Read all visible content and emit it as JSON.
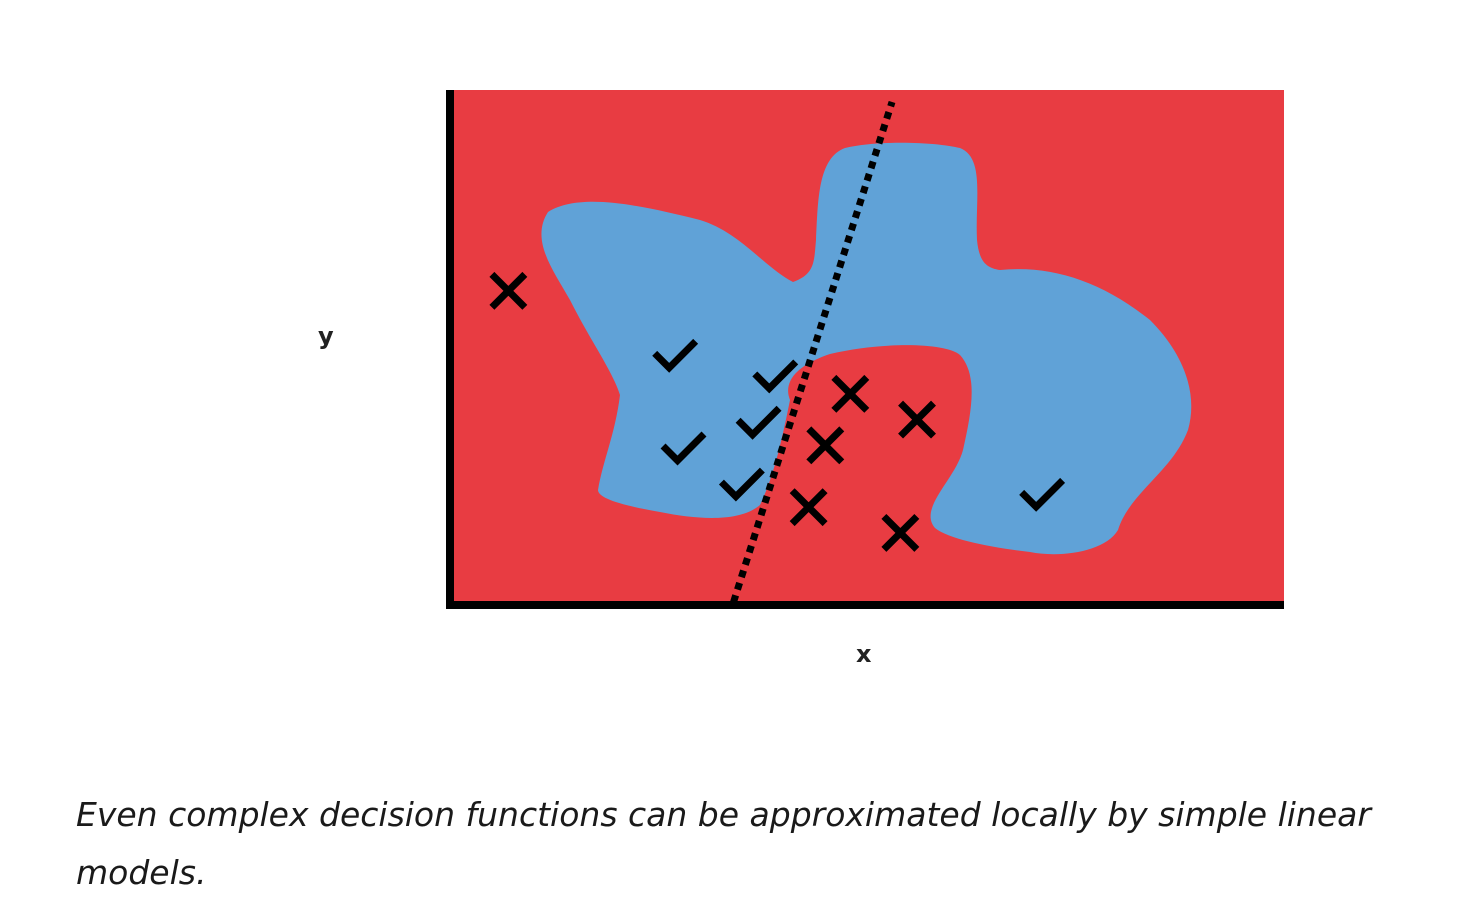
{
  "figure": {
    "axes": {
      "x_label": "x",
      "y_label": "y"
    },
    "colors": {
      "negative_region": "#e83c42",
      "positive_region": "#60a2d7",
      "axis": "#000000",
      "marker": "#000000",
      "boundary_line": "#000000"
    },
    "markers": [
      {
        "type": "cross",
        "x": 0.07,
        "y": 0.61
      },
      {
        "type": "check",
        "x": 0.27,
        "y": 0.48
      },
      {
        "type": "check",
        "x": 0.39,
        "y": 0.44
      },
      {
        "type": "check",
        "x": 0.37,
        "y": 0.35
      },
      {
        "type": "check",
        "x": 0.28,
        "y": 0.3
      },
      {
        "type": "check",
        "x": 0.35,
        "y": 0.23
      },
      {
        "type": "cross",
        "x": 0.48,
        "y": 0.41
      },
      {
        "type": "cross",
        "x": 0.56,
        "y": 0.36
      },
      {
        "type": "cross",
        "x": 0.45,
        "y": 0.31
      },
      {
        "type": "cross",
        "x": 0.43,
        "y": 0.19
      },
      {
        "type": "cross",
        "x": 0.54,
        "y": 0.14
      },
      {
        "type": "check",
        "x": 0.71,
        "y": 0.21
      }
    ],
    "boundary_line": {
      "from": {
        "x": 0.34,
        "y": 0.0
      },
      "to": {
        "x": 0.53,
        "y": 1.0
      }
    }
  },
  "caption": "Even complex decision functions can be approximated locally by simple linear models."
}
